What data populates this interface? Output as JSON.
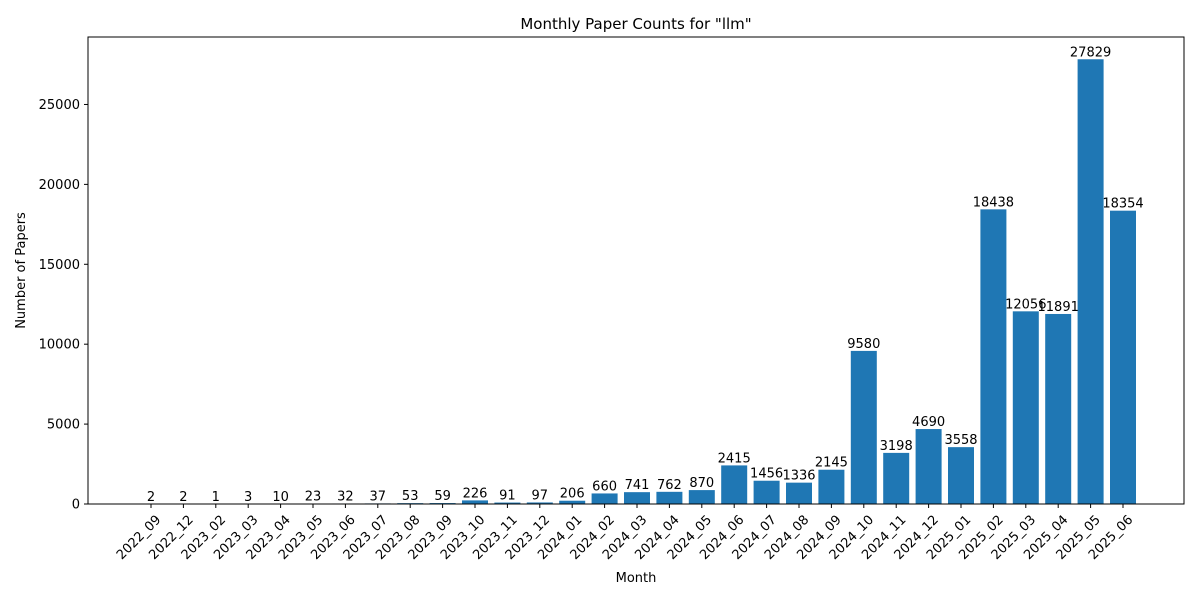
{
  "chart_data": {
    "type": "bar",
    "title": "Monthly Paper Counts for \"llm\"",
    "xlabel": "Month",
    "ylabel": "Number of Papers",
    "ylim": [
      0,
      29222
    ],
    "yticks": [
      0,
      5000,
      10000,
      15000,
      20000,
      25000
    ],
    "grid": false,
    "color": "#1f77b4",
    "categories": [
      "2022_09",
      "2022_12",
      "2023_02",
      "2023_03",
      "2023_04",
      "2023_05",
      "2023_06",
      "2023_07",
      "2023_08",
      "2023_09",
      "2023_10",
      "2023_11",
      "2023_12",
      "2024_01",
      "2024_02",
      "2024_03",
      "2024_04",
      "2024_05",
      "2024_06",
      "2024_07",
      "2024_08",
      "2024_09",
      "2024_10",
      "2024_11",
      "2024_12",
      "2025_01",
      "2025_02",
      "2025_03",
      "2025_04",
      "2025_05",
      "2025_06"
    ],
    "values": [
      2,
      2,
      1,
      3,
      10,
      23,
      32,
      37,
      53,
      59,
      226,
      91,
      97,
      206,
      660,
      741,
      762,
      870,
      2415,
      1456,
      1336,
      2145,
      9580,
      3198,
      4690,
      3558,
      18438,
      12056,
      11891,
      27829,
      18354
    ]
  }
}
